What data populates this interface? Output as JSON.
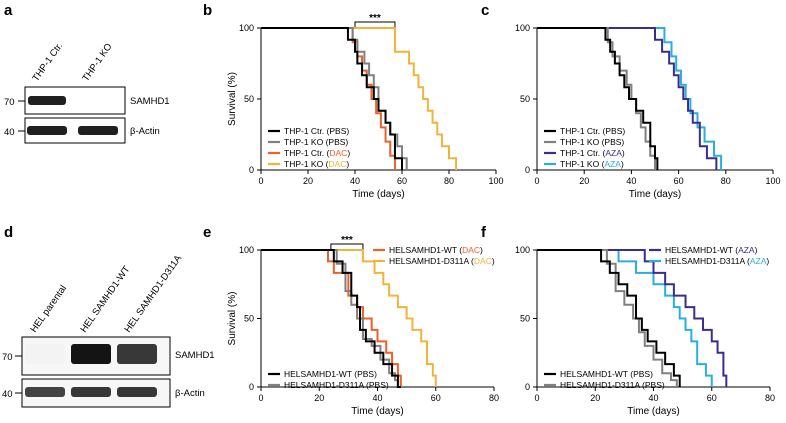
{
  "panel_labels": {
    "a": "a",
    "b": "b",
    "c": "c",
    "d": "d",
    "e": "e",
    "f": "f"
  },
  "blots": {
    "a": {
      "lanes": [
        "THP-1 Ctr.",
        "THP-1 KO"
      ],
      "rows": [
        {
          "protein": "SAMHD1",
          "marker": "70",
          "intensities": [
            0.95,
            0.0
          ]
        },
        {
          "protein": "β-Actin",
          "marker": "40",
          "intensities": [
            0.95,
            0.95
          ]
        }
      ]
    },
    "d": {
      "lanes": [
        "HEL parental",
        "HEL SAMHD1-WT",
        "HEL SAMHD1-D311A"
      ],
      "rows": [
        {
          "protein": "SAMHD1",
          "marker": "70",
          "intensities": [
            0.05,
            1.0,
            0.85
          ]
        },
        {
          "protein": "β-Actin",
          "marker": "40",
          "intensities": [
            0.8,
            0.85,
            0.85
          ]
        }
      ]
    }
  },
  "chart_data": [
    {
      "panel": "b",
      "type": "line",
      "subtype": "kaplan-meier",
      "xlabel": "Time (days)",
      "ylabel": "Survival (%)",
      "xlim": [
        0,
        100
      ],
      "ylim": [
        0,
        100
      ],
      "xticks": [
        "0",
        "20",
        "40",
        "60",
        "80",
        "100"
      ],
      "yticks": [
        "0",
        "50",
        "100"
      ],
      "legend_position": "bottom-left",
      "significance": {
        "label": "***",
        "x1": 40,
        "x2": 57
      },
      "series": [
        {
          "name": "THP-1 Ctr.",
          "treatment": "PBS",
          "color": "#000000",
          "x": [
            0,
            37,
            40,
            41,
            43,
            45,
            48,
            50,
            53,
            55,
            57,
            60
          ],
          "y": [
            100,
            91.7,
            83.3,
            75,
            66.7,
            58.3,
            50,
            41.7,
            33.3,
            25,
            8.3,
            0
          ]
        },
        {
          "name": "THP-1 KO",
          "treatment": "PBS",
          "color": "#808080",
          "x": [
            0,
            39,
            41,
            44,
            46,
            48,
            50,
            53,
            55,
            58,
            60,
            62
          ],
          "y": [
            100,
            91.7,
            83.3,
            75,
            66.7,
            58.3,
            41.7,
            33.3,
            25,
            16.7,
            8.3,
            0
          ]
        },
        {
          "name": "THP-1 Ctr.",
          "treatment": "DAC",
          "color": "#e8622a",
          "x": [
            0,
            39,
            41,
            43,
            45,
            47,
            49,
            51,
            53,
            55,
            57
          ],
          "y": [
            100,
            90,
            80,
            70,
            60,
            50,
            40,
            30,
            20,
            10,
            0
          ]
        },
        {
          "name": "THP-1 KO",
          "treatment": "DAC",
          "color": "#f0b43c",
          "x": [
            0,
            57,
            63,
            65,
            67,
            69,
            71,
            73,
            75,
            77,
            80,
            83
          ],
          "y": [
            100,
            83.3,
            75,
            66.7,
            58.3,
            50,
            41.7,
            33.3,
            25,
            16.7,
            8.3,
            0
          ]
        }
      ]
    },
    {
      "panel": "c",
      "type": "line",
      "subtype": "kaplan-meier",
      "xlabel": "Time (days)",
      "ylabel": "",
      "xlim": [
        0,
        100
      ],
      "ylim": [
        0,
        100
      ],
      "xticks": [
        "0",
        "20",
        "40",
        "60",
        "80",
        "100"
      ],
      "yticks": [
        "0",
        "50",
        "100"
      ],
      "legend_position": "bottom-left",
      "series": [
        {
          "name": "THP-1 Ctr.",
          "treatment": "PBS",
          "color": "#000000",
          "x": [
            0,
            29,
            31,
            33,
            35,
            37,
            39,
            42,
            45,
            48,
            50,
            51
          ],
          "y": [
            100,
            91.7,
            83.3,
            75,
            66.7,
            58.3,
            50,
            41.7,
            33.3,
            16.7,
            8.3,
            0
          ]
        },
        {
          "name": "THP-1 KO",
          "treatment": "PBS",
          "color": "#808080",
          "x": [
            0,
            30,
            32,
            35,
            38,
            40,
            42,
            44,
            46,
            48,
            50
          ],
          "y": [
            100,
            90,
            80,
            70,
            60,
            50,
            40,
            30,
            20,
            10,
            0
          ]
        },
        {
          "name": "THP-1 Ctr.",
          "treatment": "AZA",
          "color": "#3a2e8c",
          "x": [
            0,
            50,
            53,
            56,
            58,
            60,
            62,
            64,
            66,
            69,
            72,
            76
          ],
          "y": [
            100,
            91.7,
            83.3,
            75,
            66.7,
            58.3,
            50,
            41.7,
            33.3,
            16.7,
            8.3,
            0
          ]
        },
        {
          "name": "THP-1 KO",
          "treatment": "AZA",
          "color": "#2aaee0",
          "x": [
            0,
            54,
            57,
            59,
            61,
            63,
            65,
            68,
            71,
            75,
            78
          ],
          "y": [
            100,
            90,
            80,
            70,
            60,
            50,
            40,
            30,
            20,
            10,
            0
          ]
        }
      ]
    },
    {
      "panel": "e",
      "type": "line",
      "subtype": "kaplan-meier",
      "xlabel": "Time (days)",
      "ylabel": "Survival (%)",
      "xlim": [
        0,
        80
      ],
      "ylim": [
        0,
        100
      ],
      "xticks": [
        "0",
        "20",
        "40",
        "60",
        "80"
      ],
      "yticks": [
        "0",
        "50",
        "100"
      ],
      "legend_position": "bottom-left and top-right",
      "significance": {
        "label": "***",
        "x1": 24,
        "x2": 35
      },
      "series": [
        {
          "name": "HELSAMHD1-WT",
          "treatment": "PBS",
          "color": "#000000",
          "x": [
            0,
            25,
            28,
            31,
            33,
            34,
            36,
            39,
            42,
            45,
            47,
            48
          ],
          "y": [
            100,
            91.7,
            83.3,
            66.7,
            58.3,
            41.7,
            33.3,
            25,
            16.7,
            8.3,
            0,
            0
          ]
        },
        {
          "name": "HELSAMHD1-D311A",
          "treatment": "PBS",
          "color": "#808080",
          "x": [
            0,
            26,
            29,
            31,
            33,
            35,
            38,
            41,
            44,
            46,
            47
          ],
          "y": [
            100,
            90,
            70,
            60,
            50,
            35,
            30,
            20,
            10,
            5,
            0
          ]
        },
        {
          "name": "HELSAMHD1-WT",
          "treatment": "DAC",
          "color": "#e8622a",
          "x": [
            0,
            23,
            25,
            30,
            33,
            35,
            38,
            40,
            43,
            45,
            47,
            48
          ],
          "y": [
            100,
            91.7,
            83.3,
            66.7,
            58.3,
            50,
            41.7,
            33.3,
            25,
            16.7,
            8.3,
            0
          ]
        },
        {
          "name": "HELSAMHD1-D311A",
          "treatment": "DAC",
          "color": "#f0b43c",
          "x": [
            0,
            35,
            39,
            42,
            44,
            47,
            50,
            52,
            55,
            57,
            59,
            60
          ],
          "y": [
            100,
            91.7,
            83.3,
            75,
            66.7,
            58.3,
            50,
            41.7,
            33.3,
            16.7,
            8.3,
            0
          ]
        }
      ]
    },
    {
      "panel": "f",
      "type": "line",
      "subtype": "kaplan-meier",
      "xlabel": "Time (days)",
      "ylabel": "",
      "xlim": [
        0,
        80
      ],
      "ylim": [
        0,
        100
      ],
      "xticks": [
        "0",
        "20",
        "40",
        "60",
        "80"
      ],
      "yticks": [
        "0",
        "50",
        "100"
      ],
      "legend_position": "bottom-left and top-right",
      "series": [
        {
          "name": "HELSAMHD1-WT",
          "treatment": "PBS",
          "color": "#000000",
          "x": [
            0,
            22,
            25,
            28,
            31,
            34,
            36,
            38,
            41,
            44,
            47,
            49
          ],
          "y": [
            100,
            91.7,
            83.3,
            75,
            66.7,
            50,
            41.7,
            33.3,
            25,
            16.7,
            8.3,
            0
          ]
        },
        {
          "name": "HELSAMHD1-D311A",
          "treatment": "PBS",
          "color": "#808080",
          "x": [
            0,
            24,
            27,
            30,
            33,
            35,
            37,
            40,
            43,
            46,
            48
          ],
          "y": [
            100,
            90,
            70,
            60,
            50,
            40,
            30,
            20,
            10,
            5,
            0
          ]
        },
        {
          "name": "HELSAMHD1-WT",
          "treatment": "AZA",
          "color": "#3a2e8c",
          "x": [
            0,
            37,
            40,
            44,
            47,
            51,
            54,
            57,
            60,
            62,
            64,
            65
          ],
          "y": [
            100,
            91.7,
            83.3,
            75,
            66.7,
            58.3,
            50,
            41.7,
            33.3,
            25,
            8.3,
            0
          ]
        },
        {
          "name": "HELSAMHD1-D311A",
          "treatment": "AZA",
          "color": "#2aaee0",
          "x": [
            0,
            28,
            34,
            40,
            44,
            47,
            49,
            51,
            53,
            55,
            58,
            60
          ],
          "y": [
            100,
            91.7,
            83.3,
            75,
            66.7,
            58.3,
            50,
            41.7,
            33.3,
            16.7,
            8.3,
            0
          ]
        }
      ]
    }
  ]
}
